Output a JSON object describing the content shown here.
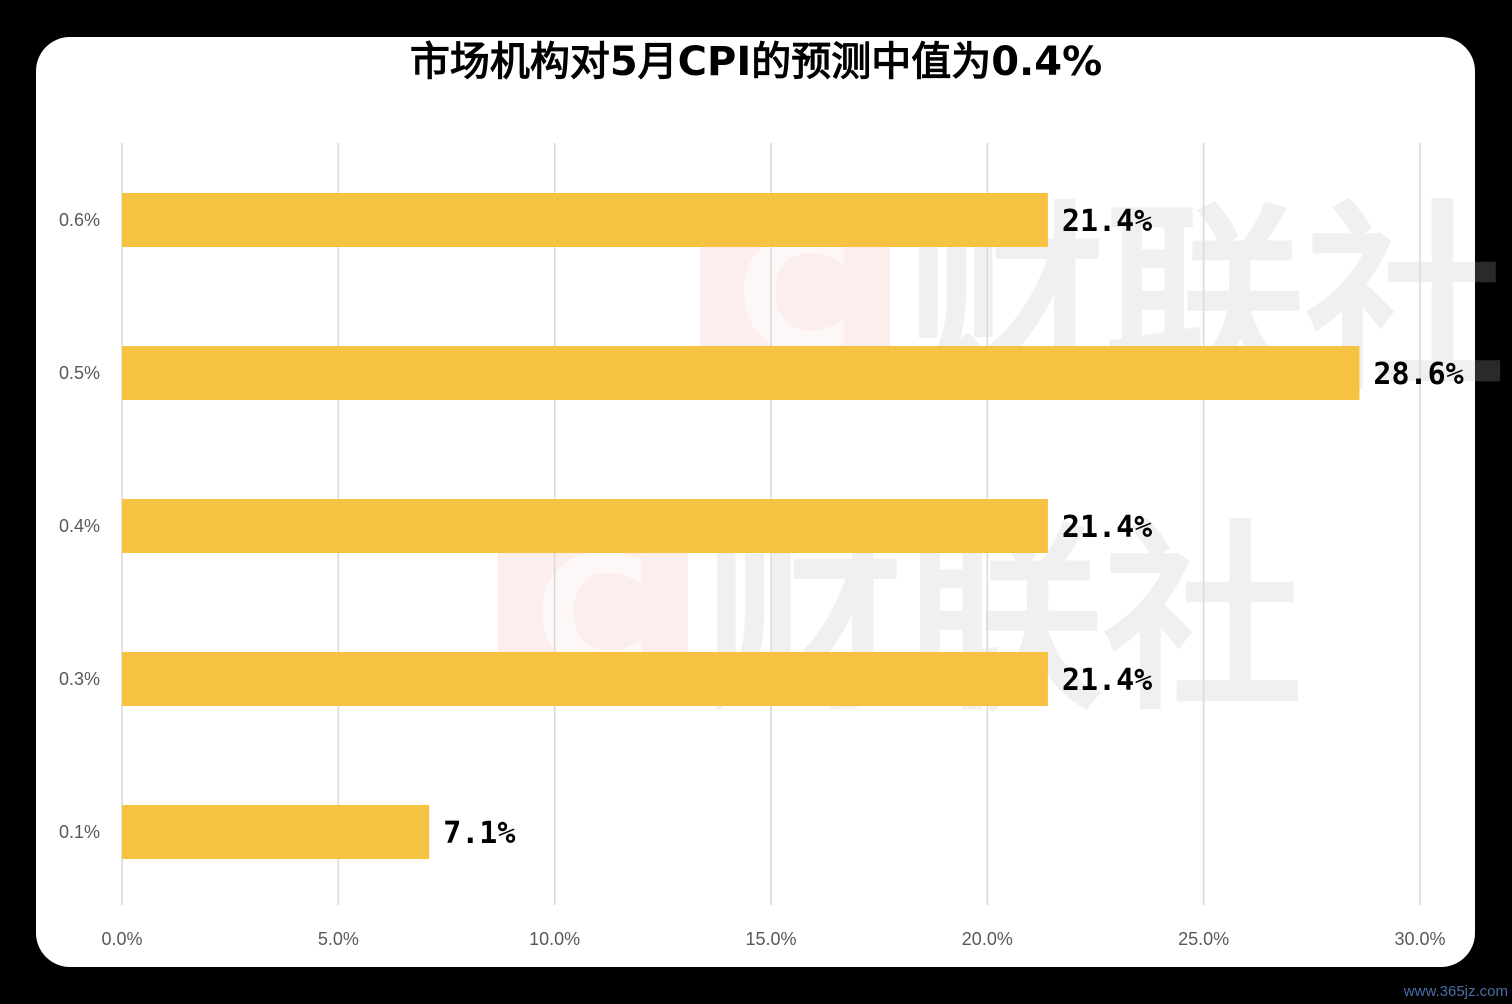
{
  "colors": {
    "bar": "#F5C242",
    "grid": "#D9D9D9",
    "tick": "#595959",
    "label": "#000000",
    "background": "#FFFFFF",
    "frame": "#000000"
  },
  "watermark": "财联社",
  "site_mark": "www.365jz.com",
  "chart_data": {
    "type": "bar",
    "orientation": "horizontal",
    "title": "市场机构对5月CPI的预测中值为0.4%",
    "xlabel": "",
    "ylabel": "",
    "categories": [
      "0.6%",
      "0.5%",
      "0.4%",
      "0.3%",
      "0.1%"
    ],
    "values": [
      21.4,
      28.6,
      21.4,
      21.4,
      7.1
    ],
    "data_labels": [
      "21.4%",
      "28.6%",
      "21.4%",
      "21.4%",
      "7.1%"
    ],
    "xlim": [
      0,
      30
    ],
    "x_ticks": [
      0,
      5,
      10,
      15,
      20,
      25,
      30
    ],
    "x_tick_labels": [
      "0.0%",
      "5.0%",
      "10.0%",
      "15.0%",
      "20.0%",
      "25.0%",
      "30.0%"
    ],
    "grid": "vertical",
    "legend": "none"
  }
}
